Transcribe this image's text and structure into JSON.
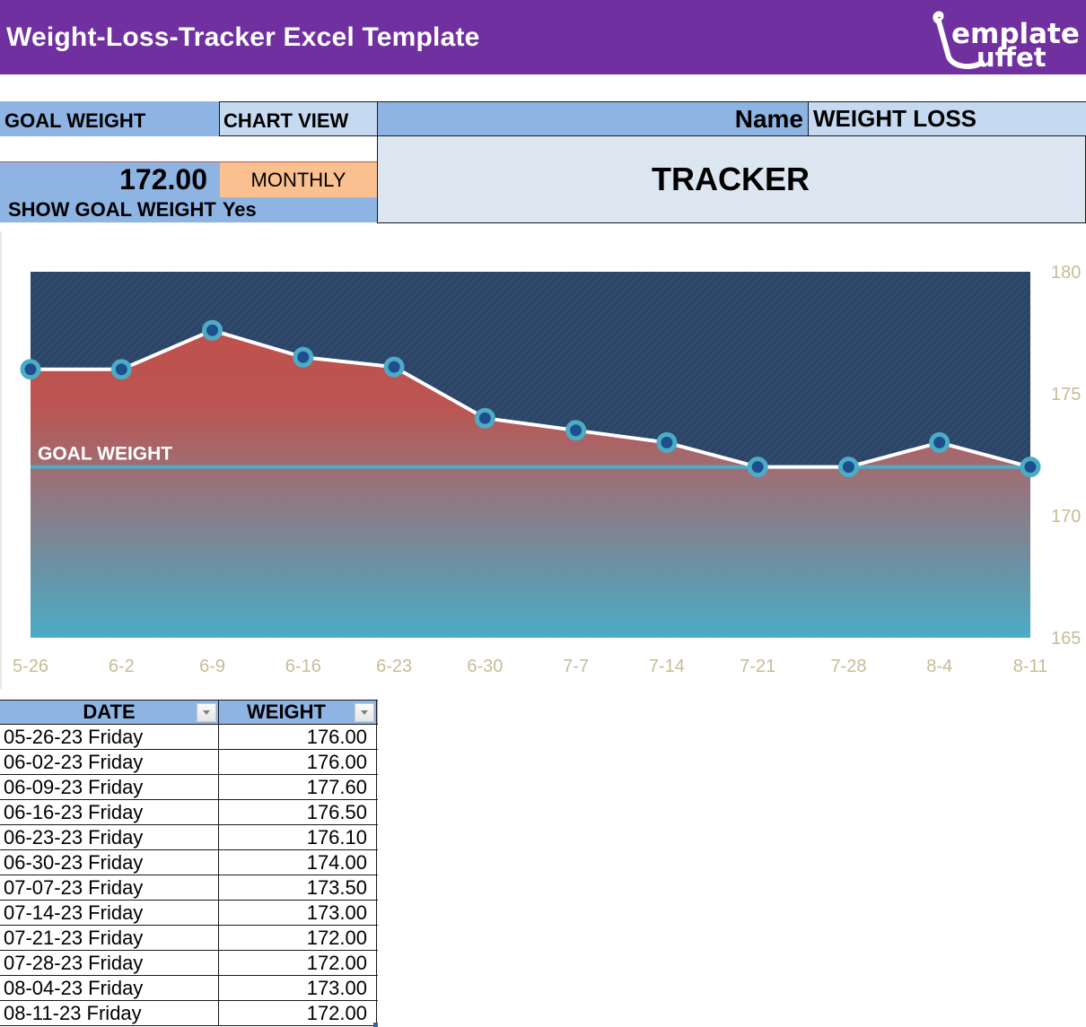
{
  "header": {
    "title": "Weight-Loss-Tracker Excel Template",
    "logo": {
      "line1": "emplate",
      "line2": "uffet",
      "icon": "ladle-icon"
    }
  },
  "settings": {
    "goal_weight_label": "GOAL WEIGHT",
    "goal_weight_value": "172.00",
    "chart_view_label": "CHART VIEW",
    "chart_view_value": "MONTHLY",
    "show_goal_label": "SHOW GOAL WEIGHT",
    "show_goal_value": "Yes"
  },
  "tracker": {
    "name_label": "Name",
    "name_value": "WEIGHT LOSS",
    "subtitle": "TRACKER"
  },
  "colors": {
    "banner": "#7030a0",
    "header_blue": "#8eb4e3",
    "light_blue": "#c5d9f1",
    "tracker_bg": "#dce6f1",
    "monthly_orange": "#fac090",
    "plot_bg": "#2c4566",
    "area_top": "#c0504d",
    "area_bottom": "#4bacc6",
    "goal_line": "#4bacc6",
    "axis_text": "#c4bd97"
  },
  "chart_data": {
    "type": "area",
    "title": "",
    "xlabel": "",
    "ylabel": "",
    "categories": [
      "5-26",
      "6-2",
      "6-9",
      "6-16",
      "6-23",
      "6-30",
      "7-7",
      "7-14",
      "7-21",
      "7-28",
      "8-4",
      "8-11"
    ],
    "series": [
      {
        "name": "Weight",
        "values": [
          176.0,
          176.0,
          177.6,
          176.5,
          176.1,
          174.0,
          173.5,
          173.0,
          172.0,
          172.0,
          173.0,
          172.0
        ]
      },
      {
        "name": "Goal Weight",
        "values": [
          172,
          172,
          172,
          172,
          172,
          172,
          172,
          172,
          172,
          172,
          172,
          172
        ]
      }
    ],
    "annotations": [
      {
        "text": "GOAL WEIGHT",
        "y": 172
      }
    ],
    "y_ticks": [
      "180",
      "175",
      "170",
      "165"
    ],
    "ylim": [
      165,
      180
    ],
    "y_axis_position": "right",
    "grid": false,
    "legend": "none"
  },
  "table": {
    "columns": [
      "DATE",
      "WEIGHT"
    ],
    "rows": [
      {
        "date": "05-26-23 Friday",
        "weight": "176.00"
      },
      {
        "date": "06-02-23 Friday",
        "weight": "176.00"
      },
      {
        "date": "06-09-23 Friday",
        "weight": "177.60"
      },
      {
        "date": "06-16-23 Friday",
        "weight": "176.50"
      },
      {
        "date": "06-23-23 Friday",
        "weight": "176.10"
      },
      {
        "date": "06-30-23 Friday",
        "weight": "174.00"
      },
      {
        "date": "07-07-23 Friday",
        "weight": "173.50"
      },
      {
        "date": "07-14-23 Friday",
        "weight": "173.00"
      },
      {
        "date": "07-21-23 Friday",
        "weight": "172.00"
      },
      {
        "date": "07-28-23 Friday",
        "weight": "172.00"
      },
      {
        "date": "08-04-23 Friday",
        "weight": "173.00"
      },
      {
        "date": "08-11-23 Friday",
        "weight": "172.00"
      }
    ]
  }
}
